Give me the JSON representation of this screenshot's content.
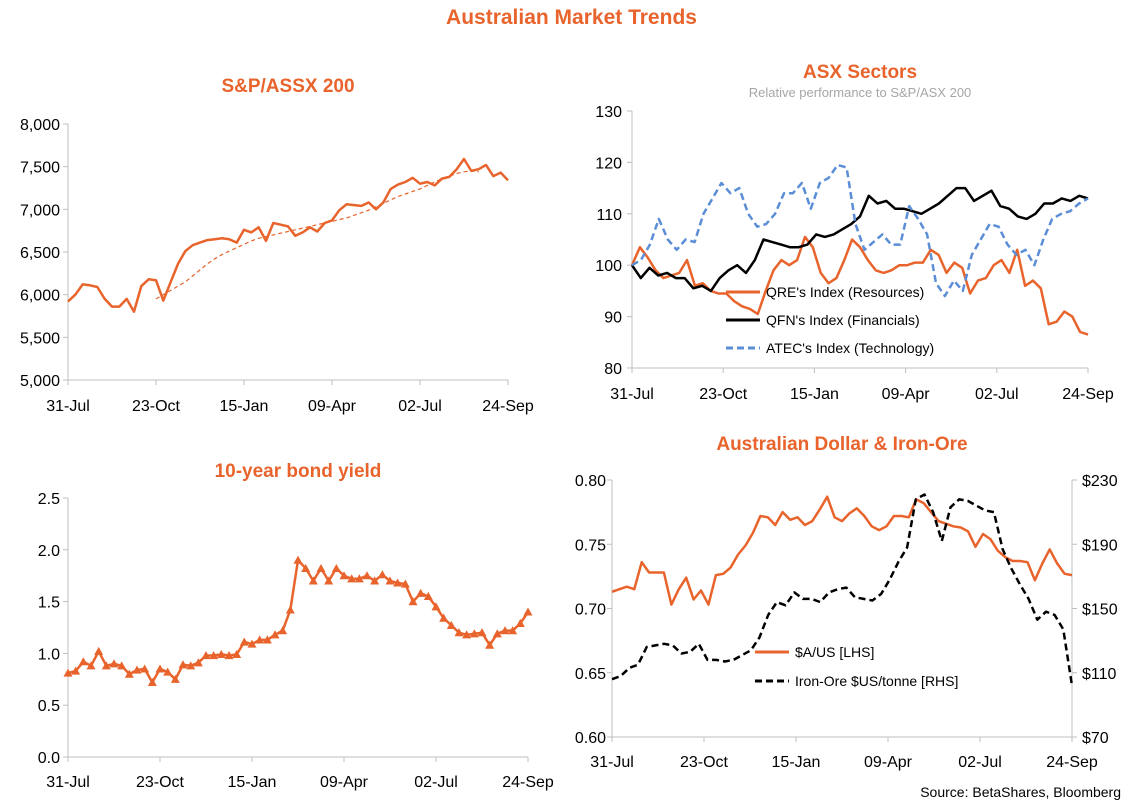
{
  "page_title": "Australian Market Trends",
  "source": "Source: BetaShares, Bloomberg",
  "colors": {
    "orange": "#E8642C",
    "blue": "#5B8ED6",
    "black": "#000000",
    "axis": "#BFBFBF",
    "text": "#000000",
    "subtitle": "#A6A6A6"
  },
  "chart_data": [
    {
      "id": "asx200",
      "type": "line",
      "title": "S&P/ASSX 200",
      "subtitle": "",
      "xlabel": "",
      "ylabel": "",
      "x_tick_labels": [
        "31-Jul",
        "23-Oct",
        "15-Jan",
        "09-Apr",
        "02-Jul",
        "24-Sep"
      ],
      "y_tick_labels": [
        "5,000",
        "5,500",
        "6,000",
        "6,500",
        "7,000",
        "7,500",
        "8,000"
      ],
      "ylim": [
        5000,
        8000
      ],
      "grid": false,
      "legend": "none",
      "series": [
        {
          "style": "solid",
          "color": "#E8642C",
          "values": [
            5920,
            6000,
            6120,
            6110,
            6090,
            5950,
            5860,
            5860,
            5950,
            5800,
            6100,
            6180,
            6170,
            5930,
            6150,
            6360,
            6510,
            6580,
            6610,
            6640,
            6650,
            6660,
            6650,
            6610,
            6760,
            6730,
            6790,
            6630,
            6840,
            6820,
            6800,
            6690,
            6730,
            6790,
            6740,
            6840,
            6870,
            6990,
            7060,
            7050,
            7040,
            7080,
            7000,
            7080,
            7240,
            7290,
            7320,
            7370,
            7300,
            7320,
            7280,
            7360,
            7380,
            7470,
            7590,
            7450,
            7470,
            7520,
            7390,
            7430,
            7340
          ]
        },
        {
          "style": "dashed",
          "color": "#E8642C",
          "x_start_index": 12,
          "values": [
            5950,
            6000,
            6050,
            6100,
            6150,
            6220,
            6290,
            6360,
            6420,
            6470,
            6510,
            6550,
            6590,
            6630,
            6660,
            6680,
            6700,
            6720,
            6740,
            6760,
            6780,
            6800,
            6820,
            6840,
            6860,
            6880,
            6900,
            6930,
            6960,
            6990,
            7030,
            7070,
            7110,
            7150,
            7180,
            7210,
            7240,
            7280,
            7320,
            7360,
            7390,
            7420,
            7440,
            7450,
            7440
          ]
        }
      ]
    },
    {
      "id": "sectors",
      "type": "line",
      "title": "ASX Sectors",
      "subtitle": "Relative performance to S&P/ASX 200",
      "xlabel": "",
      "ylabel": "",
      "x_tick_labels": [
        "31-Jul",
        "23-Oct",
        "15-Jan",
        "09-Apr",
        "02-Jul",
        "24-Sep"
      ],
      "y_tick_labels": [
        "80",
        "90",
        "100",
        "110",
        "120",
        "130"
      ],
      "ylim": [
        80,
        130
      ],
      "grid": false,
      "legend": "center-left",
      "series": [
        {
          "name": "QRE's Index (Resources)",
          "style": "solid",
          "color": "#E8642C",
          "values": [
            100,
            103.5,
            101.5,
            99,
            97.5,
            98,
            98.5,
            101,
            96,
            96.5,
            95,
            94.5,
            94.5,
            93,
            92,
            91.5,
            90.5,
            95,
            99,
            101,
            100,
            101,
            105.5,
            103.5,
            98.5,
            96.5,
            97.5,
            101,
            105,
            103.5,
            101,
            99,
            98.5,
            99,
            100,
            100,
            100.5,
            100.5,
            103,
            102,
            98.5,
            100.5,
            99.5,
            94.5,
            97,
            97.5,
            100,
            101,
            98.5,
            103,
            96,
            97,
            95.5,
            88.5,
            89,
            91,
            90,
            87,
            86.5
          ]
        },
        {
          "name": "QFN's Index (Financials)",
          "style": "solid",
          "color": "#000000",
          "values": [
            100,
            97.5,
            99.5,
            98,
            98.5,
            97.5,
            97.5,
            95.5,
            96,
            95,
            97.5,
            99,
            100,
            98.5,
            101,
            105,
            104.5,
            104,
            103.5,
            103.5,
            104,
            106,
            105.5,
            106,
            107,
            108,
            109.5,
            113.5,
            112,
            112.5,
            111,
            111,
            110.5,
            110,
            111,
            112,
            113.5,
            115,
            115,
            112.5,
            113.5,
            114.5,
            111.5,
            111,
            109.5,
            109,
            110,
            112,
            112,
            113,
            112.5,
            113.5,
            113
          ]
        },
        {
          "name": "ATEC's Index (Technology)",
          "style": "dashed",
          "color": "#5B8ED6",
          "values": [
            100,
            101,
            104,
            109,
            105,
            103,
            105,
            104.5,
            110,
            113,
            116,
            114,
            115,
            110,
            107.5,
            108,
            110,
            114,
            114,
            116,
            111,
            116,
            117,
            119.5,
            119,
            108,
            103,
            104.5,
            106,
            104,
            104,
            111.5,
            109,
            106,
            96.5,
            94,
            97,
            95,
            102,
            105,
            108,
            107.5,
            104,
            102,
            103,
            100,
            105,
            109,
            110,
            110.5,
            112,
            113
          ]
        }
      ]
    },
    {
      "id": "bond",
      "type": "line",
      "title": "10-year bond yield",
      "subtitle": "",
      "xlabel": "",
      "ylabel": "",
      "x_tick_labels": [
        "31-Jul",
        "23-Oct",
        "15-Jan",
        "09-Apr",
        "02-Jul",
        "24-Sep"
      ],
      "y_tick_labels": [
        "0.0",
        "0.5",
        "1.0",
        "1.5",
        "2.0",
        "2.5"
      ],
      "ylim": [
        0,
        2.5
      ],
      "grid": false,
      "legend": "none",
      "marker": "triangle",
      "series": [
        {
          "style": "solid",
          "color": "#E8642C",
          "values": [
            0.81,
            0.83,
            0.92,
            0.88,
            1.02,
            0.88,
            0.9,
            0.88,
            0.8,
            0.84,
            0.85,
            0.72,
            0.85,
            0.82,
            0.75,
            0.89,
            0.88,
            0.91,
            0.98,
            0.98,
            0.99,
            0.98,
            0.99,
            1.11,
            1.09,
            1.13,
            1.13,
            1.18,
            1.22,
            1.42,
            1.9,
            1.82,
            1.7,
            1.82,
            1.7,
            1.82,
            1.75,
            1.72,
            1.72,
            1.75,
            1.7,
            1.76,
            1.7,
            1.68,
            1.67,
            1.5,
            1.58,
            1.55,
            1.45,
            1.34,
            1.27,
            1.2,
            1.18,
            1.19,
            1.2,
            1.08,
            1.19,
            1.22,
            1.22,
            1.29,
            1.4
          ]
        }
      ]
    },
    {
      "id": "aud_iron",
      "type": "line",
      "title": "Australian Dollar  & Iron-Ore",
      "subtitle": "",
      "xlabel": "",
      "ylabel": "",
      "x_tick_labels": [
        "31-Jul",
        "23-Oct",
        "15-Jan",
        "09-Apr",
        "02-Jul",
        "24-Sep"
      ],
      "y_tick_labels": [
        "0.60",
        "0.65",
        "0.70",
        "0.75",
        "0.80"
      ],
      "y2_tick_labels": [
        "$70",
        "$110",
        "$150",
        "$190",
        "$230"
      ],
      "ylim": [
        0.6,
        0.8
      ],
      "y2lim": [
        70,
        230
      ],
      "grid": false,
      "legend": "bottom-center",
      "series": [
        {
          "name": "$A/US [LHS]",
          "style": "solid",
          "color": "#E8642C",
          "axis": "left",
          "values": [
            0.713,
            0.715,
            0.717,
            0.715,
            0.736,
            0.728,
            0.728,
            0.728,
            0.703,
            0.715,
            0.724,
            0.707,
            0.714,
            0.703,
            0.726,
            0.727,
            0.732,
            0.742,
            0.749,
            0.759,
            0.772,
            0.771,
            0.765,
            0.775,
            0.769,
            0.771,
            0.765,
            0.768,
            0.777,
            0.787,
            0.771,
            0.768,
            0.774,
            0.778,
            0.772,
            0.764,
            0.761,
            0.764,
            0.772,
            0.772,
            0.771,
            0.785,
            0.782,
            0.775,
            0.768,
            0.766,
            0.764,
            0.763,
            0.76,
            0.748,
            0.758,
            0.754,
            0.745,
            0.74,
            0.737,
            0.737,
            0.736,
            0.722,
            0.735,
            0.746,
            0.735,
            0.727,
            0.726
          ]
        },
        {
          "name": "Iron-Ore $US/tonne [RHS]",
          "style": "dashed",
          "color": "#000000",
          "axis": "right",
          "values": [
            106,
            108,
            113,
            115,
            126,
            127,
            128,
            127,
            122,
            123,
            128,
            118,
            118,
            117,
            118,
            121,
            124,
            132,
            146,
            154,
            152,
            160,
            156,
            156,
            154,
            160,
            162,
            163,
            157,
            156,
            155,
            159,
            168,
            179,
            188,
            218,
            221,
            210,
            192,
            213,
            218,
            217,
            214,
            211,
            210,
            187,
            175,
            165,
            156,
            143,
            148,
            146,
            137,
            102
          ]
        }
      ]
    }
  ]
}
